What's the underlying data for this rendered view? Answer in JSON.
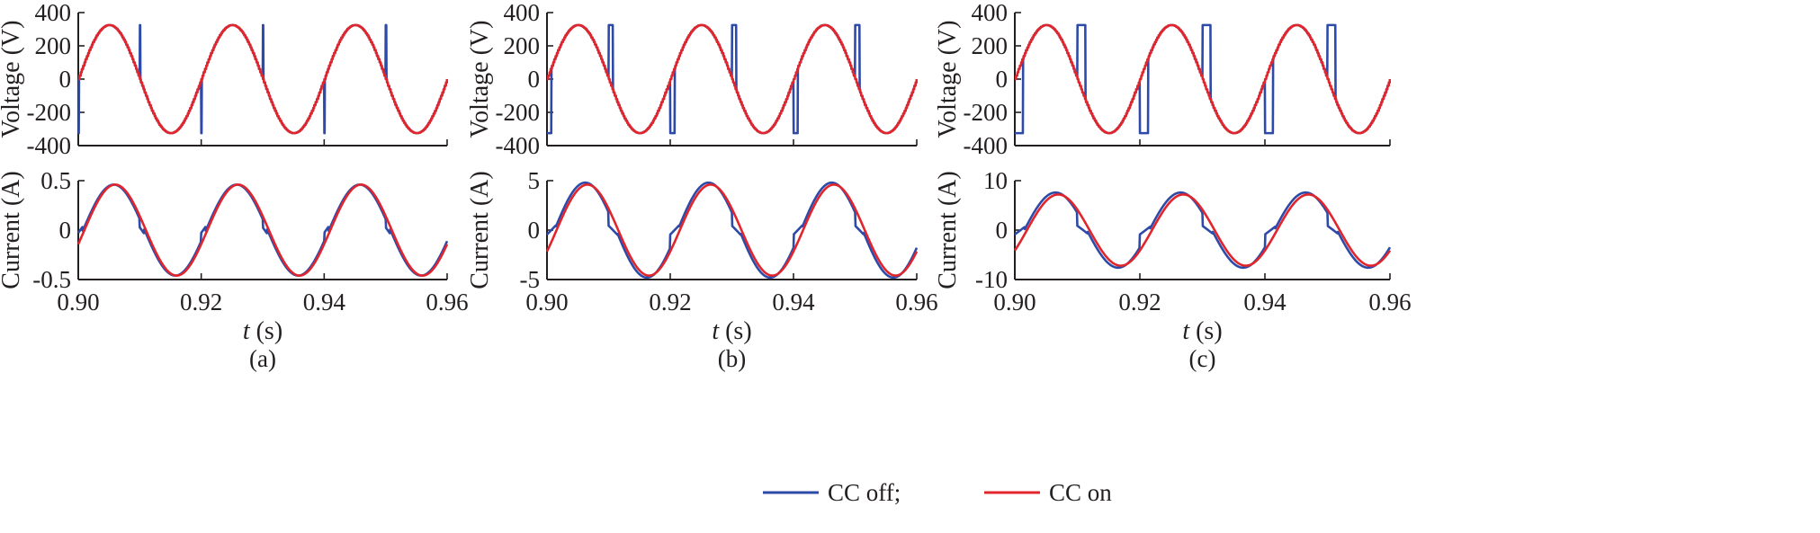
{
  "colors": {
    "cc_off": "#2e4aa8",
    "cc_on": "#e0262c",
    "axis": "#231f20"
  },
  "legend": {
    "items": [
      {
        "label": "CC off;",
        "series": "cc_off"
      },
      {
        "label": "CC on",
        "series": "cc_on"
      }
    ]
  },
  "chart_data": [
    {
      "type": "line",
      "panel": "a",
      "caption": "(a)",
      "signal": "voltage",
      "xlabel_italic": "t",
      "xlabel_unit": "(s)",
      "ylabel": "Voltage (V)",
      "xlim": [
        0.9,
        0.96
      ],
      "ylim": [
        -400,
        400
      ],
      "xticks": [
        "0.90",
        "0.92",
        "0.94",
        "0.96"
      ],
      "yticks": [
        "400",
        "200",
        "0",
        "-200",
        "-400"
      ],
      "grid": false,
      "frequency_hz": 50,
      "amplitude": 325,
      "spike_width_s": 0.0001,
      "series": [
        {
          "key": "cc_off",
          "name": "CC off",
          "waveform": "sine with off-interval of 0.0001 s after each zero crossing, clamped to ±325 V"
        },
        {
          "key": "cc_on",
          "name": "CC on",
          "waveform": "sine, 325 V peak, 50 Hz"
        }
      ]
    },
    {
      "type": "line",
      "panel": "a",
      "signal": "current",
      "xlabel_italic": "t",
      "xlabel_unit": "(s)",
      "ylabel": "Current (A)",
      "xlim": [
        0.9,
        0.96
      ],
      "ylim": [
        -0.5,
        0.5
      ],
      "xticks": [
        "0.90",
        "0.92",
        "0.94",
        "0.96"
      ],
      "yticks": [
        "0.5",
        "0",
        "-0.5"
      ],
      "grid": false,
      "frequency_hz": 50,
      "on_amplitude": 0.46,
      "off_amplitude": 0.46,
      "phase_lag_deg": 18,
      "notch_s": 0.0007,
      "series": [
        {
          "key": "cc_off",
          "name": "CC off"
        },
        {
          "key": "cc_on",
          "name": "CC on"
        }
      ]
    },
    {
      "type": "line",
      "panel": "b",
      "caption": "(b)",
      "signal": "voltage",
      "xlabel_italic": "t",
      "xlabel_unit": "(s)",
      "ylabel": "Voltage (V)",
      "xlim": [
        0.9,
        0.96
      ],
      "ylim": [
        -400,
        400
      ],
      "xticks": [
        "0.90",
        "0.92",
        "0.94",
        "0.96"
      ],
      "yticks": [
        "400",
        "200",
        "0",
        "-200",
        "-400"
      ],
      "grid": false,
      "frequency_hz": 50,
      "amplitude": 325,
      "spike_width_s": 0.0007,
      "series": [
        {
          "key": "cc_off",
          "name": "CC off"
        },
        {
          "key": "cc_on",
          "name": "CC on"
        }
      ]
    },
    {
      "type": "line",
      "panel": "b",
      "signal": "current",
      "xlabel_italic": "t",
      "xlabel_unit": "(s)",
      "ylabel": "Current (A)",
      "xlim": [
        0.9,
        0.96
      ],
      "ylim": [
        -5,
        5
      ],
      "xticks": [
        "0.90",
        "0.92",
        "0.94",
        "0.96"
      ],
      "yticks": [
        "5",
        "0",
        "-5"
      ],
      "grid": false,
      "frequency_hz": 50,
      "on_amplitude": 4.6,
      "off_amplitude": 4.8,
      "phase_lag_deg": 28,
      "notch_s": 0.0014,
      "series": [
        {
          "key": "cc_off",
          "name": "CC off"
        },
        {
          "key": "cc_on",
          "name": "CC on"
        }
      ]
    },
    {
      "type": "line",
      "panel": "c",
      "caption": "(c)",
      "signal": "voltage",
      "xlabel_italic": "t",
      "xlabel_unit": "(s)",
      "ylabel": "Voltage (V)",
      "xlim": [
        0.9,
        0.96
      ],
      "ylim": [
        -400,
        400
      ],
      "xticks": [
        "0.90",
        "0.92",
        "0.94",
        "0.96"
      ],
      "yticks": [
        "400",
        "200",
        "0",
        "-200",
        "-400"
      ],
      "grid": false,
      "frequency_hz": 50,
      "amplitude": 325,
      "spike_width_s": 0.0013,
      "series": [
        {
          "key": "cc_off",
          "name": "CC off"
        },
        {
          "key": "cc_on",
          "name": "CC on"
        }
      ]
    },
    {
      "type": "line",
      "panel": "c",
      "signal": "current",
      "xlabel_italic": "t",
      "xlabel_unit": "(s)",
      "ylabel": "Current (A)",
      "xlim": [
        0.9,
        0.96
      ],
      "ylim": [
        -10,
        10
      ],
      "xticks": [
        "0.90",
        "0.92",
        "0.94",
        "0.96"
      ],
      "yticks": [
        "10",
        "0",
        "-10"
      ],
      "grid": false,
      "frequency_hz": 50,
      "on_amplitude": 7.2,
      "off_amplitude": 7.6,
      "phase_lag_deg": 35,
      "notch_s": 0.0016,
      "series": [
        {
          "key": "cc_off",
          "name": "CC off"
        },
        {
          "key": "cc_on",
          "name": "CC on"
        }
      ]
    }
  ]
}
